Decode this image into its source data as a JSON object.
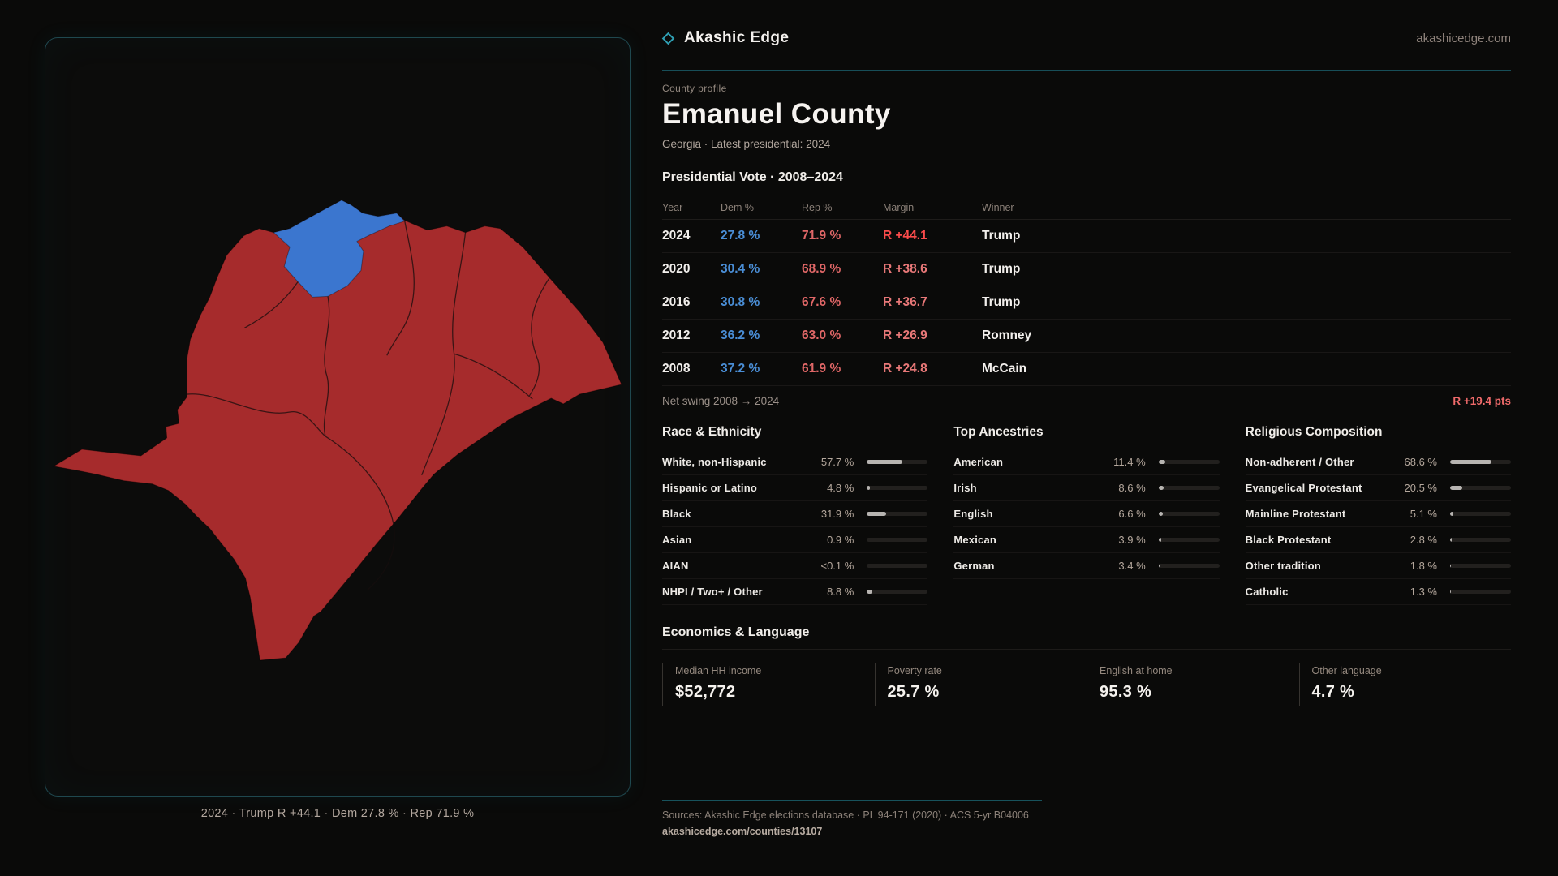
{
  "brand": {
    "name": "Akashic Edge",
    "domain": "akashicedge.com"
  },
  "profile": {
    "kicker": "County profile",
    "title": "Emanuel County",
    "subtitle": "Georgia · Latest presidential: 2024"
  },
  "map": {
    "caption": "2024 · Trump R +44.1 · Dem 27.8 % · Rep 71.9 %"
  },
  "election_table": {
    "title": "Presidential Vote · 2008–2024",
    "columns": [
      "Year",
      "Dem %",
      "Rep %",
      "Margin",
      "Winner"
    ],
    "rows": [
      {
        "year": "2024",
        "dem": "27.8 %",
        "rep": "71.9 %",
        "margin": "R +44.1",
        "winner": "Trump"
      },
      {
        "year": "2020",
        "dem": "30.4 %",
        "rep": "68.9 %",
        "margin": "R +38.6",
        "winner": "Trump"
      },
      {
        "year": "2016",
        "dem": "30.8 %",
        "rep": "67.6 %",
        "margin": "R +36.7",
        "winner": "Trump"
      },
      {
        "year": "2012",
        "dem": "36.2 %",
        "rep": "63.0 %",
        "margin": "R +26.9",
        "winner": "Romney"
      },
      {
        "year": "2008",
        "dem": "37.2 %",
        "rep": "61.9 %",
        "margin": "R +24.8",
        "winner": "McCain"
      }
    ],
    "net_swing_label": "Net swing 2008 → 2024",
    "net_swing_value": "R +19.4 pts"
  },
  "race": {
    "title": "Race & Ethnicity",
    "rows": [
      {
        "label": "White, non-Hispanic",
        "value": "57.7 %",
        "pct": 57.7
      },
      {
        "label": "Hispanic or Latino",
        "value": "4.8 %",
        "pct": 4.8
      },
      {
        "label": "Black",
        "value": "31.9 %",
        "pct": 31.9
      },
      {
        "label": "Asian",
        "value": "0.9 %",
        "pct": 0.9
      },
      {
        "label": "AIAN",
        "value": "<0.1 %",
        "pct": 0.05
      },
      {
        "label": "NHPI / Two+ / Other",
        "value": "8.8 %",
        "pct": 8.8
      }
    ]
  },
  "ancestries": {
    "title": "Top Ancestries",
    "rows": [
      {
        "label": "American",
        "value": "11.4 %",
        "pct": 11.4
      },
      {
        "label": "Irish",
        "value": "8.6 %",
        "pct": 8.6
      },
      {
        "label": "English",
        "value": "6.6 %",
        "pct": 6.6
      },
      {
        "label": "Mexican",
        "value": "3.9 %",
        "pct": 3.9
      },
      {
        "label": "German",
        "value": "3.4 %",
        "pct": 3.4
      }
    ]
  },
  "religion": {
    "title": "Religious Composition",
    "rows": [
      {
        "label": "Non-adherent / Other",
        "value": "68.6 %",
        "pct": 68.6
      },
      {
        "label": "Evangelical Protestant",
        "value": "20.5 %",
        "pct": 20.5
      },
      {
        "label": "Mainline Protestant",
        "value": "5.1 %",
        "pct": 5.1
      },
      {
        "label": "Black Protestant",
        "value": "2.8 %",
        "pct": 2.8
      },
      {
        "label": "Other tradition",
        "value": "1.8 %",
        "pct": 1.8
      },
      {
        "label": "Catholic",
        "value": "1.3 %",
        "pct": 1.3
      }
    ]
  },
  "economics": {
    "title": "Economics & Language",
    "stats": [
      {
        "label": "Median HH income",
        "value": "$52,772"
      },
      {
        "label": "Poverty rate",
        "value": "25.7 %"
      },
      {
        "label": "English at home",
        "value": "95.3 %"
      },
      {
        "label": "Other language",
        "value": "4.7 %"
      }
    ]
  },
  "footer": {
    "sources": "Sources: Akashic Edge elections database · PL 94-171 (2020) · ACS 5-yr B04006",
    "permalink": "akashicedge.com/counties/13107"
  },
  "colors": {
    "accent_teal": "#2f9fb3",
    "dem_blue": "#4a8ed6",
    "rep_red": "#e06767",
    "margin_highlight_red": "#fb4b4b",
    "map_red": "#a62b2c",
    "map_blue": "#3b76cf"
  }
}
